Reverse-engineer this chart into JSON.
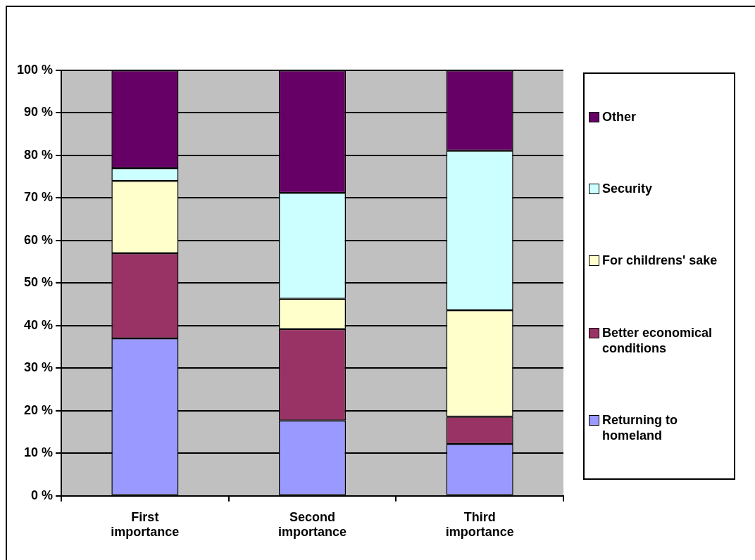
{
  "chart_data": {
    "type": "bar",
    "stacked": true,
    "categories": [
      "First importance",
      "Second importance",
      "Third importance"
    ],
    "series": [
      {
        "name": "Returning to homeland",
        "color": "#9999ff",
        "values": [
          37,
          17.7,
          12.2
        ]
      },
      {
        "name": "Better economical conditions",
        "color": "#993366",
        "values": [
          20,
          21.5,
          6.4
        ]
      },
      {
        "name": "For childrens' sake",
        "color": "#ffffcc",
        "values": [
          17,
          7.1,
          25
        ]
      },
      {
        "name": "Security",
        "color": "#ccffff",
        "values": [
          3,
          24.9,
          37.5
        ]
      },
      {
        "name": "Other",
        "color": "#660066",
        "values": [
          23,
          28.8,
          18.9
        ]
      }
    ],
    "ylim": [
      0,
      100
    ],
    "yticks": [
      {
        "value": 0,
        "label": "0 %"
      },
      {
        "value": 10,
        "label": "10 %"
      },
      {
        "value": 20,
        "label": "20 %"
      },
      {
        "value": 30,
        "label": "30 %"
      },
      {
        "value": 40,
        "label": "40 %"
      },
      {
        "value": 50,
        "label": "50 %"
      },
      {
        "value": 60,
        "label": "60 %"
      },
      {
        "value": 70,
        "label": "70 %"
      },
      {
        "value": 80,
        "label": "80 %"
      },
      {
        "value": 90,
        "label": "90 %"
      },
      {
        "value": 100,
        "label": "100 %"
      }
    ],
    "grid": "y",
    "legend": "right"
  }
}
